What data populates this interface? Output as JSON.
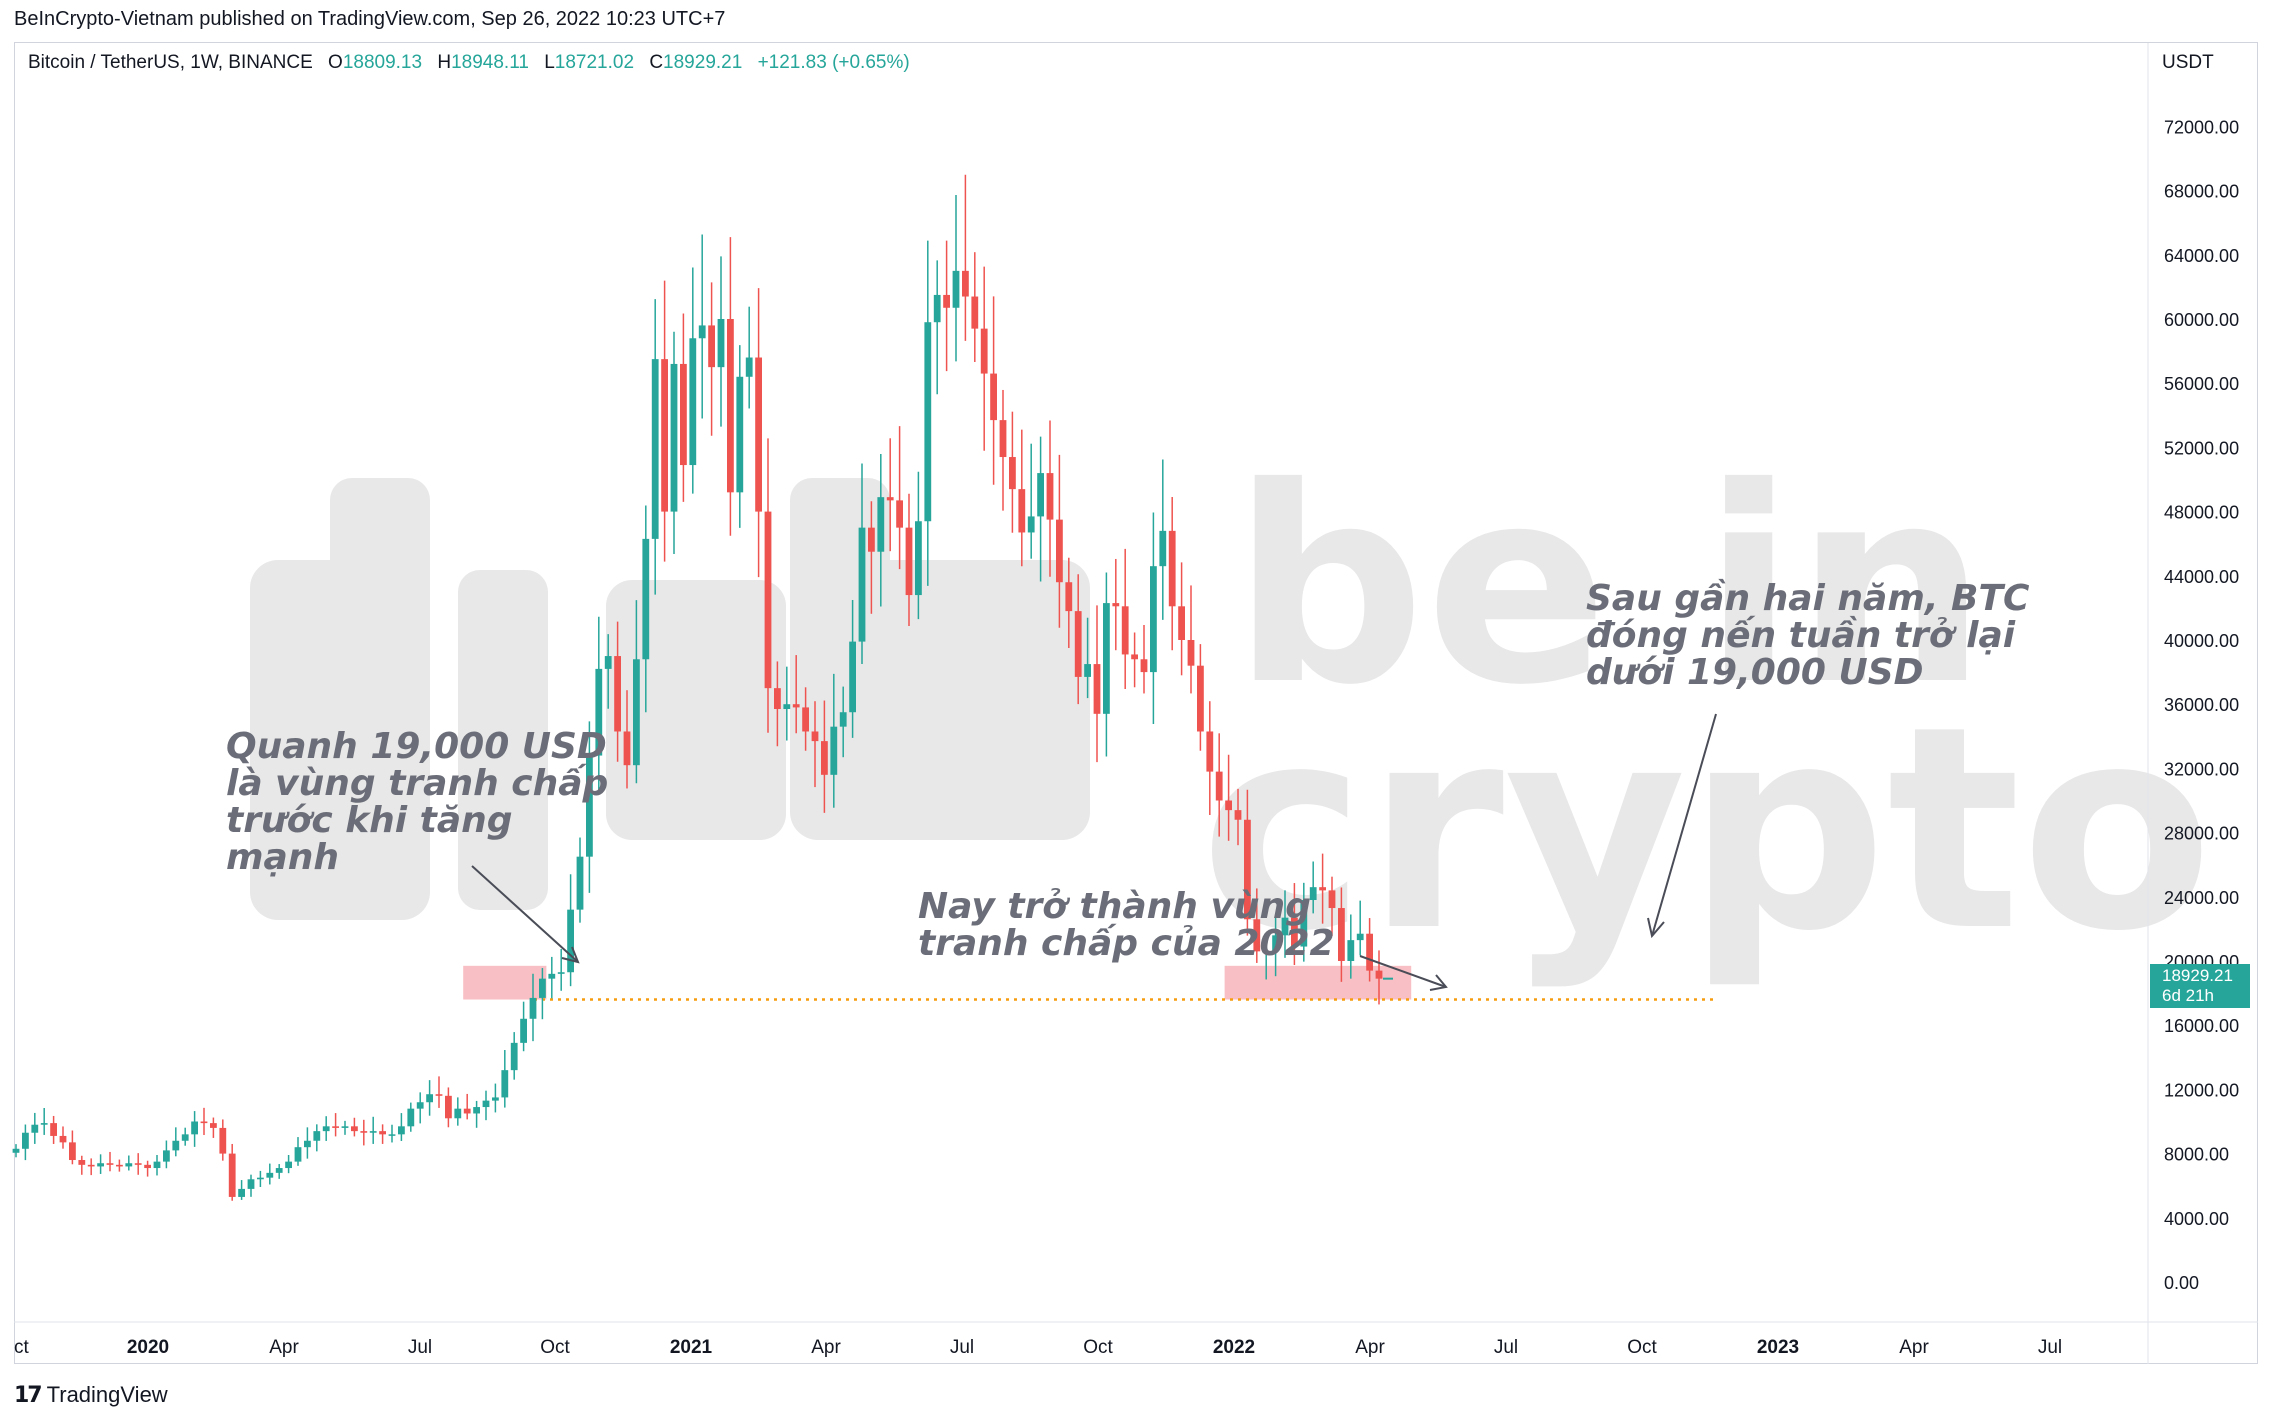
{
  "header": {
    "attribution": "BeInCrypto-Vietnam published on TradingView.com, Sep 26, 2022 10:23 UTC+7"
  },
  "legend": {
    "symbol": "Bitcoin / TetherUS, 1W, BINANCE",
    "o_label": "O",
    "o_value": "18809.13",
    "h_label": "H",
    "h_value": "18948.11",
    "l_label": "L",
    "l_value": "18721.02",
    "c_label": "C",
    "c_value": "18929.21",
    "change": "+121.83 (+0.65%)"
  },
  "price_axis": {
    "currency": "USDT",
    "current_price": "18929.21",
    "countdown": "6d 21h"
  },
  "watermark": {
    "line1": "be in",
    "line2": "crypto"
  },
  "annotations": {
    "left": [
      "Quanh 19,000 USD",
      "là vùng tranh chấp",
      "trước khi tăng",
      "mạnh"
    ],
    "middle": [
      "Nay trở thành vùng",
      "tranh chấp của 2022"
    ],
    "right": [
      "Sau gần hai năm, BTC",
      "đóng nến tuần trở lại",
      "dưới 19,000 USD"
    ]
  },
  "footer": {
    "brand": "TradingView"
  },
  "colors": {
    "up": "#26a69a",
    "down": "#ef5350",
    "zone": "#f8c0c4",
    "support_line": "#f59d0e",
    "annotation_text": "#6b6e78",
    "watermark": "#e8e8e8"
  },
  "chart_data": {
    "type": "candlestick",
    "interval": "1W",
    "exchange": "BINANCE",
    "y_ticks": [
      0,
      4000,
      8000,
      12000,
      16000,
      20000,
      24000,
      28000,
      32000,
      36000,
      40000,
      44000,
      48000,
      52000,
      56000,
      60000,
      64000,
      68000,
      72000
    ],
    "ylim": [
      -1500,
      75500
    ],
    "x_ticks": [
      "ct",
      "2020",
      "Apr",
      "Jul",
      "Oct",
      "2021",
      "Apr",
      "Jul",
      "Oct",
      "2022",
      "Apr",
      "Jul",
      "Oct",
      "2023",
      "Apr",
      "Jul"
    ],
    "support_level": 17600,
    "zones": [
      {
        "from_week": 48,
        "to_week": 56,
        "low": 17600,
        "high": 19700
      },
      {
        "from_week": 129,
        "to_week": 148,
        "low": 17600,
        "high": 19700
      }
    ],
    "closes": [
      8300,
      9300,
      9800,
      9900,
      9100,
      8700,
      7600,
      7300,
      7200,
      7400,
      7300,
      7200,
      7400,
      7300,
      7100,
      7500,
      8200,
      8800,
      9200,
      10000,
      9900,
      9600,
      8000,
      5300,
      5800,
      6400,
      6500,
      6800,
      7100,
      7500,
      8400,
      8800,
      9400,
      9700,
      9600,
      9700,
      9400,
      9300,
      9400,
      9200,
      9200,
      9700,
      10800,
      11200,
      11700,
      11600,
      10200,
      10800,
      10500,
      10900,
      11300,
      11500,
      13200,
      14900,
      16400,
      17700,
      18900,
      19200,
      19300,
      23200,
      26500,
      32800,
      38200,
      39000,
      34300,
      32200,
      38800,
      46300,
      57500,
      48000,
      57200,
      50900,
      58800,
      59600,
      57000,
      60000,
      49200,
      56400,
      57600,
      48000,
      37000,
      35700,
      36000,
      35800,
      34300,
      33700,
      31600,
      34600,
      35500,
      39900,
      47000,
      45500,
      48900,
      48700,
      47000,
      42800,
      47400,
      59800,
      61500,
      60700,
      63000,
      61400,
      59400,
      56600,
      53700,
      51400,
      49400,
      46700,
      47700,
      50400,
      47500,
      43600,
      41800,
      37700,
      38500,
      35400,
      42300,
      42100,
      39100,
      38800,
      38000,
      44600,
      46800,
      42100,
      40000,
      38400,
      34300,
      31800,
      30000,
      29400,
      28800,
      22600,
      20600,
      20600,
      21600,
      22700,
      20900,
      23800,
      24600,
      24400,
      23300,
      20000,
      21300,
      21700,
      19400,
      18900
    ]
  }
}
